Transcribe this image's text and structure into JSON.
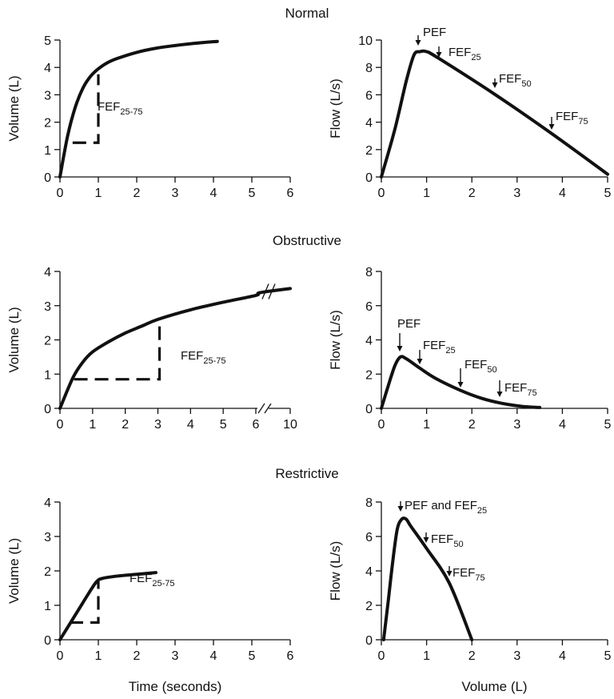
{
  "rows": [
    {
      "title": "Normal"
    },
    {
      "title": "Obstructive"
    },
    {
      "title": "Restrictive"
    }
  ],
  "chart_data": [
    {
      "type": "line",
      "row": 0,
      "col": 0,
      "ylabel": "Volume (L)",
      "xlabel": "",
      "xlim": [
        0,
        6
      ],
      "ylim": [
        0,
        5
      ],
      "xticks": [
        "0",
        "1",
        "2",
        "3",
        "4",
        "5",
        "6"
      ],
      "yticks": [
        "0",
        "1",
        "2",
        "3",
        "4",
        "5"
      ],
      "series": [
        {
          "values": [
            [
              0,
              0
            ],
            [
              0.2,
              1.5
            ],
            [
              0.4,
              2.55
            ],
            [
              0.6,
              3.25
            ],
            [
              0.8,
              3.68
            ],
            [
              1,
              3.95
            ],
            [
              1.25,
              4.18
            ],
            [
              1.5,
              4.33
            ],
            [
              2,
              4.55
            ],
            [
              2.5,
              4.7
            ],
            [
              3,
              4.8
            ],
            [
              3.5,
              4.88
            ],
            [
              4.1,
              4.95
            ]
          ]
        }
      ],
      "fef_segment": {
        "x": [
          0.33,
          1
        ],
        "y": [
          1.25,
          3.75
        ]
      },
      "annotations": [
        {
          "text": "FEF",
          "sub": "25-75"
        }
      ]
    },
    {
      "type": "line",
      "row": 0,
      "col": 1,
      "ylabel": "Flow (L/s)",
      "xlabel": "",
      "xlim": [
        0,
        5
      ],
      "ylim": [
        0,
        10
      ],
      "xticks": [
        "0",
        "1",
        "2",
        "3",
        "4",
        "5"
      ],
      "yticks": [
        "0",
        "2",
        "4",
        "6",
        "8",
        "10"
      ],
      "series": [
        {
          "values": [
            [
              0,
              0
            ],
            [
              0.3,
              3.5
            ],
            [
              0.55,
              7
            ],
            [
              0.72,
              8.9
            ],
            [
              0.85,
              9.15
            ],
            [
              1,
              9.15
            ],
            [
              1.25,
              8.7
            ],
            [
              2.5,
              6.05
            ],
            [
              3.75,
              3.2
            ],
            [
              5,
              0.2
            ]
          ]
        }
      ],
      "annotations": [
        {
          "text": "PEF",
          "sub": ""
        },
        {
          "text": "FEF",
          "sub": "25"
        },
        {
          "text": "FEF",
          "sub": "50"
        },
        {
          "text": "FEF",
          "sub": "75"
        }
      ]
    },
    {
      "type": "line",
      "row": 1,
      "col": 0,
      "ylabel": "Volume (L)",
      "xlabel": "",
      "xlim": [
        0,
        10
      ],
      "ylim": [
        0,
        4
      ],
      "axis_break": true,
      "xticks": [
        "0",
        "1",
        "2",
        "3",
        "4",
        "5",
        "6",
        "10"
      ],
      "yticks": [
        "0",
        "1",
        "2",
        "3",
        "4"
      ],
      "series": [
        {
          "values": [
            [
              0,
              0
            ],
            [
              0.4,
              0.9
            ],
            [
              0.7,
              1.35
            ],
            [
              1,
              1.65
            ],
            [
              1.5,
              1.95
            ],
            [
              2,
              2.2
            ],
            [
              2.5,
              2.4
            ],
            [
              3,
              2.6
            ],
            [
              4,
              2.88
            ],
            [
              5,
              3.1
            ],
            [
              6,
              3.3
            ],
            [
              6.5,
              3.38
            ],
            [
              10,
              3.5
            ]
          ]
        }
      ],
      "fef_segment": {
        "x": [
          0.43,
          3.05
        ],
        "y": [
          0.85,
          2.6
        ]
      },
      "annotations": [
        {
          "text": "FEF",
          "sub": "25-75"
        }
      ]
    },
    {
      "type": "line",
      "row": 1,
      "col": 1,
      "ylabel": "Flow (L/s)",
      "xlabel": "",
      "xlim": [
        0,
        5
      ],
      "ylim": [
        0,
        8
      ],
      "xticks": [
        "0",
        "1",
        "2",
        "3",
        "4",
        "5"
      ],
      "yticks": [
        "0",
        "2",
        "4",
        "6",
        "8"
      ],
      "series": [
        {
          "values": [
            [
              0,
              0
            ],
            [
              0.15,
              1.3
            ],
            [
              0.3,
              2.5
            ],
            [
              0.42,
              3.0
            ],
            [
              0.55,
              2.9
            ],
            [
              0.85,
              2.35
            ],
            [
              1.2,
              1.75
            ],
            [
              1.75,
              1.05
            ],
            [
              2.2,
              0.6
            ],
            [
              2.65,
              0.3
            ],
            [
              3.1,
              0.12
            ],
            [
              3.5,
              0.05
            ]
          ]
        }
      ],
      "annotations": [
        {
          "text": "PEF",
          "sub": ""
        },
        {
          "text": "FEF",
          "sub": "25"
        },
        {
          "text": "FEF",
          "sub": "50"
        },
        {
          "text": "FEF",
          "sub": "75"
        }
      ]
    },
    {
      "type": "line",
      "row": 2,
      "col": 0,
      "ylabel": "Volume (L)",
      "xlabel": "Time (seconds)",
      "xlim": [
        0,
        6
      ],
      "ylim": [
        0,
        4
      ],
      "xticks": [
        "0",
        "1",
        "2",
        "3",
        "4",
        "5",
        "6"
      ],
      "yticks": [
        "0",
        "1",
        "2",
        "3",
        "4"
      ],
      "series": [
        {
          "values": [
            [
              0,
              0
            ],
            [
              0.25,
              0.45
            ],
            [
              0.5,
              0.9
            ],
            [
              0.75,
              1.35
            ],
            [
              0.95,
              1.68
            ],
            [
              1.1,
              1.78
            ],
            [
              1.5,
              1.85
            ],
            [
              2,
              1.9
            ],
            [
              2.5,
              1.95
            ]
          ]
        }
      ],
      "fef_segment": {
        "x": [
          0.25,
          1
        ],
        "y": [
          0.5,
          1.7
        ]
      },
      "annotations": [
        {
          "text": "FEF",
          "sub": "25-75"
        }
      ]
    },
    {
      "type": "line",
      "row": 2,
      "col": 1,
      "ylabel": "Flow (L/s)",
      "xlabel": "Volume (L)",
      "xlim": [
        0,
        5
      ],
      "ylim": [
        0,
        8
      ],
      "xticks": [
        "0",
        "1",
        "2",
        "3",
        "4",
        "5"
      ],
      "yticks": [
        "0",
        "2",
        "4",
        "6",
        "8"
      ],
      "series": [
        {
          "values": [
            [
              0.05,
              0
            ],
            [
              0.15,
              2.2
            ],
            [
              0.25,
              4.5
            ],
            [
              0.35,
              6.4
            ],
            [
              0.45,
              7.0
            ],
            [
              0.55,
              7.0
            ],
            [
              0.65,
              6.6
            ],
            [
              1,
              5.3
            ],
            [
              1.5,
              3.3
            ],
            [
              2,
              0
            ]
          ]
        }
      ],
      "annotations": [
        {
          "text": "PEF and FEF",
          "sub": "25"
        },
        {
          "text": "FEF",
          "sub": "50"
        },
        {
          "text": "FEF",
          "sub": "75"
        }
      ]
    }
  ]
}
